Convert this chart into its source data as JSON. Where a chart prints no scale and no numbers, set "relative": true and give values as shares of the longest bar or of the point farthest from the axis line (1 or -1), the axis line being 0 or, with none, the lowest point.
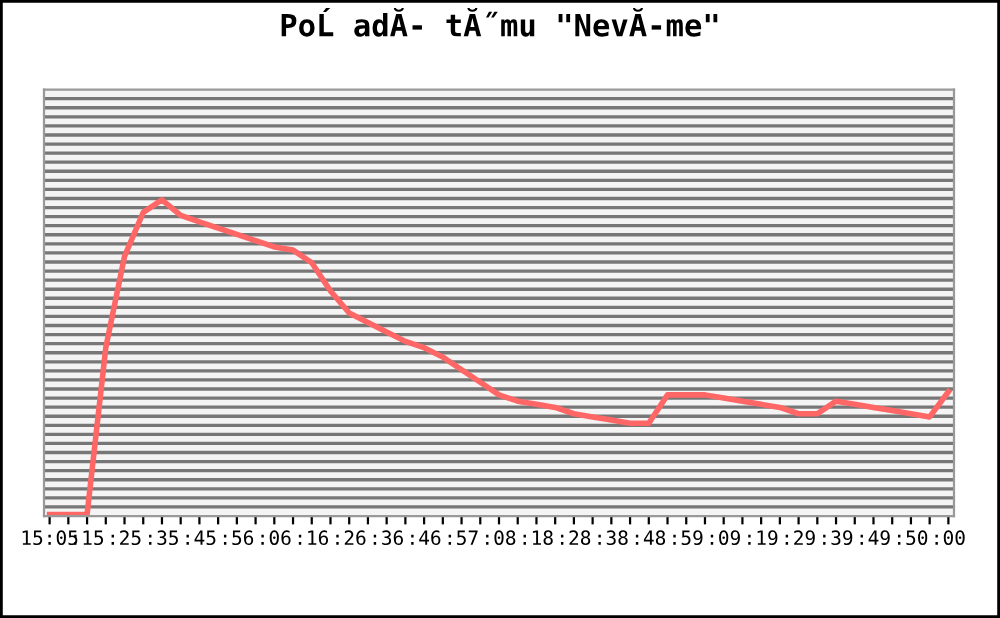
{
  "chart_data": {
    "type": "line",
    "title": "PoĹ adĂ- tĂ˝mu \"NevĂ-me\"",
    "relative": true,
    "grid": "y",
    "categories": [
      "15:05",
      null,
      ":15",
      null,
      ":25",
      null,
      ":35",
      null,
      ":45",
      null,
      ":56",
      null,
      ":06",
      null,
      ":16",
      null,
      ":26",
      null,
      ":36",
      null,
      ":46",
      null,
      ":57",
      null,
      ":08",
      null,
      ":18",
      null,
      ":28",
      null,
      ":38",
      null,
      ":48",
      null,
      ":59",
      null,
      ":09",
      null,
      ":19",
      null,
      ":29",
      null,
      ":39",
      null,
      ":49",
      null,
      ":50",
      null,
      ":00"
    ],
    "series": [
      {
        "color": "#ff6666",
        "values": [
          0,
          0,
          0,
          0.53,
          0.82,
          0.96,
          1.0,
          0.95,
          0.93,
          0.91,
          0.89,
          0.87,
          0.85,
          0.84,
          0.8,
          0.71,
          0.64,
          0.61,
          0.58,
          0.55,
          0.53,
          0.5,
          0.46,
          0.42,
          0.38,
          0.36,
          0.35,
          0.34,
          0.32,
          0.31,
          0.3,
          0.29,
          0.29,
          0.38,
          0.38,
          0.38,
          0.37,
          0.36,
          0.35,
          0.34,
          0.32,
          0.32,
          0.36,
          0.35,
          0.34,
          0.33,
          0.32,
          0.31,
          0.39
        ]
      }
    ]
  }
}
